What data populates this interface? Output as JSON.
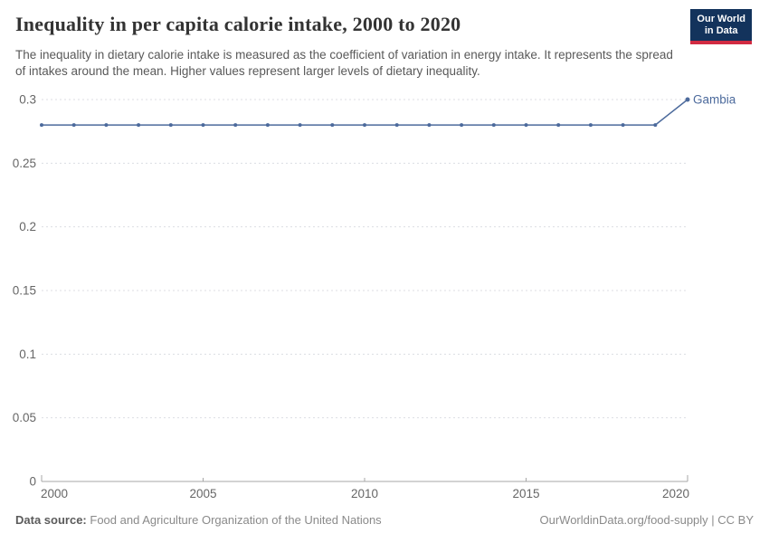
{
  "header": {
    "title": "Inequality in per capita calorie intake, 2000 to 2020",
    "subtitle": "The inequality in dietary calorie intake is measured as the coefficient of variation in energy intake. It represents the spread of intakes around the mean. Higher values represent larger levels of dietary inequality.",
    "logo": {
      "line1": "Our World",
      "line2": "in Data"
    }
  },
  "chart_data": {
    "type": "line",
    "title": "Inequality in per capita calorie intake, 2000 to 2020",
    "x": [
      2000,
      2001,
      2002,
      2003,
      2004,
      2005,
      2006,
      2007,
      2008,
      2009,
      2010,
      2011,
      2012,
      2013,
      2014,
      2015,
      2016,
      2017,
      2018,
      2019,
      2020
    ],
    "series": [
      {
        "name": "Gambia",
        "color": "#4C6A9C",
        "values": [
          0.28,
          0.28,
          0.28,
          0.28,
          0.28,
          0.28,
          0.28,
          0.28,
          0.28,
          0.28,
          0.28,
          0.28,
          0.28,
          0.28,
          0.28,
          0.28,
          0.28,
          0.28,
          0.28,
          0.28,
          0.3
        ]
      }
    ],
    "xlabel": "",
    "ylabel": "",
    "ylim": [
      0,
      0.3
    ],
    "yticks": [
      0,
      0.05,
      0.1,
      0.15,
      0.2,
      0.25,
      0.3
    ],
    "ytick_labels": [
      "0",
      "0.05",
      "0.1",
      "0.15",
      "0.2",
      "0.25",
      "0.3"
    ],
    "xticks": [
      2000,
      2005,
      2010,
      2015,
      2020
    ],
    "grid": "horizontal-dashed",
    "legend_position": "end-of-line-label"
  },
  "footer": {
    "data_source_label": "Data source:",
    "data_source_value": "Food and Agriculture Organization of the United Nations",
    "citation": "OurWorldinData.org/food-supply | CC BY"
  },
  "colors": {
    "series_blue": "#4C6A9C",
    "logo_navy": "#13335c",
    "logo_red": "#d12b42",
    "gridline": "#dcdee3",
    "axis": "#a7a7a7",
    "tick_text": "#666666"
  }
}
